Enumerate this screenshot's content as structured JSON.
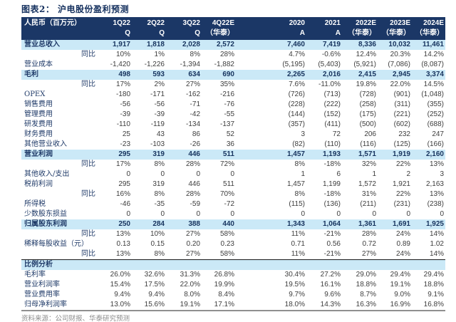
{
  "title": "图表2： 沪电股份盈利预测",
  "footer": "资料来源：公司财报、华泰研究预测",
  "colors": {
    "header_bg": "#1b3766",
    "highlight_row_bg": "#cbe9f7",
    "label_text": "#1f3a68",
    "number_text": "#3d3d3d",
    "source_text": "#8c8c8c"
  },
  "table": {
    "unit_label": "人民币（百万元）",
    "columns": [
      {
        "label": "1Q22",
        "sub": "Q"
      },
      {
        "label": "2Q22",
        "sub": "Q"
      },
      {
        "label": "3Q22",
        "sub": "Q"
      },
      {
        "label": "4Q22E",
        "sub": "（华泰）"
      },
      {
        "label": "2020",
        "sub": "A"
      },
      {
        "label": "2021",
        "sub": "A"
      },
      {
        "label": "2022E",
        "sub": "（华泰）"
      },
      {
        "label": "2023E",
        "sub": "（华泰）"
      },
      {
        "label": "2024E",
        "sub": "（华泰）"
      }
    ],
    "rows": [
      {
        "label": "营业总收入",
        "type": "highlight",
        "values": [
          "1,917",
          "1,818",
          "2,028",
          "2,572",
          "7,460",
          "7,419",
          "8,336",
          "10,032",
          "11,461"
        ]
      },
      {
        "label": "同比",
        "type": "yoy",
        "values": [
          "10%",
          "1%",
          "8%",
          "28%",
          "4.7%",
          "-0.6%",
          "12.4%",
          "20.3%",
          "14.2%"
        ]
      },
      {
        "label": "营业成本",
        "type": "normal",
        "values": [
          "-1,420",
          "-1,226",
          "-1,394",
          "-1,882",
          "(5,195)",
          "(5,403)",
          "(5,921)",
          "(7,086)",
          "(8,087)"
        ]
      },
      {
        "label": "毛利",
        "type": "highlight",
        "values": [
          "498",
          "593",
          "634",
          "690",
          "2,265",
          "2,016",
          "2,415",
          "2,945",
          "3,374"
        ]
      },
      {
        "label": "同比",
        "type": "yoy",
        "values": [
          "17%",
          "2%",
          "27%",
          "35%",
          "7.6%",
          "-11.0%",
          "19.8%",
          "22.0%",
          "14.5%"
        ]
      },
      {
        "label": "OPEX",
        "type": "normal",
        "values": [
          "-180",
          "-171",
          "-162",
          "-216",
          "(726)",
          "(713)",
          "(728)",
          "(901)",
          "(1,048)"
        ]
      },
      {
        "label": "销售费用",
        "type": "normal",
        "values": [
          "-56",
          "-56",
          "-71",
          "-76",
          "(228)",
          "(222)",
          "(258)",
          "(311)",
          "(355)"
        ]
      },
      {
        "label": "管理费用",
        "type": "normal",
        "values": [
          "-39",
          "-39",
          "-42",
          "-55",
          "(144)",
          "(152)",
          "(175)",
          "(221)",
          "(252)"
        ]
      },
      {
        "label": "研发费用",
        "type": "normal",
        "values": [
          "-110",
          "-119",
          "-134",
          "-137",
          "(357)",
          "(411)",
          "(500)",
          "(602)",
          "(688)"
        ]
      },
      {
        "label": "财务费用",
        "type": "normal",
        "values": [
          "25",
          "43",
          "86",
          "52",
          "3",
          "72",
          "206",
          "232",
          "247"
        ]
      },
      {
        "label": "其他营业收入",
        "type": "normal",
        "values": [
          "-23",
          "-103",
          "-26",
          "36",
          "(82)",
          "(110)",
          "(116)",
          "(125)",
          "(166)"
        ]
      },
      {
        "label": "营业利润",
        "type": "highlight",
        "values": [
          "295",
          "319",
          "446",
          "511",
          "1,457",
          "1,193",
          "1,571",
          "1,919",
          "2,160"
        ]
      },
      {
        "label": "同比",
        "type": "yoy",
        "values": [
          "17%",
          "8%",
          "28%",
          "72%",
          "8%",
          "-18%",
          "32%",
          "22%",
          "13%"
        ]
      },
      {
        "label": "其他收入/支出",
        "type": "normal",
        "values": [
          "0",
          "0",
          "0",
          "0",
          "1",
          "6",
          "1",
          "2",
          "3"
        ]
      },
      {
        "label": "税前利润",
        "type": "normal",
        "values": [
          "295",
          "319",
          "446",
          "511",
          "1,457",
          "1,199",
          "1,572",
          "1,921",
          "2,163"
        ]
      },
      {
        "label": "同比",
        "type": "yoy",
        "values": [
          "16%",
          "8%",
          "28%",
          "70%",
          "8%",
          "-18%",
          "31%",
          "22%",
          "13%"
        ]
      },
      {
        "label": "所得税",
        "type": "normal",
        "values": [
          "-46",
          "-35",
          "-59",
          "-72",
          "(115)",
          "(136)",
          "(211)",
          "(231)",
          "(238)"
        ]
      },
      {
        "label": "少数股东损益",
        "type": "normal",
        "values": [
          "0",
          "0",
          "0",
          "0",
          "0",
          "0",
          "0",
          "0",
          "0"
        ]
      },
      {
        "label": "归属股东利润",
        "type": "highlight",
        "values": [
          "250",
          "284",
          "388",
          "440",
          "1,343",
          "1,064",
          "1,361",
          "1,691",
          "1,925"
        ]
      },
      {
        "label": "同比",
        "type": "yoy",
        "values": [
          "13%",
          "10%",
          "27%",
          "58%",
          "11%",
          "-21%",
          "28%",
          "24%",
          "14%"
        ]
      },
      {
        "label": "稀释每股收益（元）",
        "type": "normal",
        "values": [
          "0.13",
          "0.15",
          "0.20",
          "0.23",
          "0.71",
          "0.56",
          "0.72",
          "0.89",
          "1.02"
        ]
      },
      {
        "label": "同比",
        "type": "yoy",
        "values": [
          "13%",
          "8%",
          "27%",
          "58%",
          "11%",
          "-21%",
          "27%",
          "24%",
          "14%"
        ]
      },
      {
        "label": "比例分析",
        "type": "section",
        "values": []
      },
      {
        "label": "毛利率",
        "type": "normal",
        "values": [
          "26.0%",
          "32.6%",
          "31.3%",
          "26.8%",
          "30.4%",
          "27.2%",
          "29.0%",
          "29.4%",
          "29.4%"
        ]
      },
      {
        "label": "营业利润率",
        "type": "normal",
        "values": [
          "15.4%",
          "17.5%",
          "22.0%",
          "19.9%",
          "19.5%",
          "16.1%",
          "18.8%",
          "19.1%",
          "18.8%"
        ]
      },
      {
        "label": "营业费用率",
        "type": "normal",
        "values": [
          "9.4%",
          "9.4%",
          "8.0%",
          "8.4%",
          "9.7%",
          "9.6%",
          "8.7%",
          "9.0%",
          "9.1%"
        ]
      },
      {
        "label": "归母净利润率",
        "type": "normal",
        "values": [
          "13.0%",
          "15.6%",
          "19.1%",
          "17.1%",
          "18.0%",
          "14.3%",
          "16.3%",
          "16.9%",
          "16.8%"
        ]
      }
    ]
  }
}
